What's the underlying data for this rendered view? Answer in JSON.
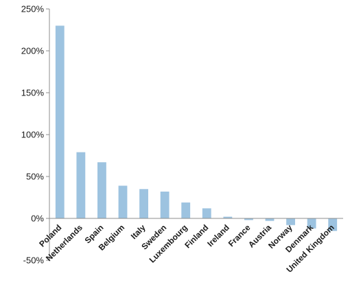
{
  "chart_data": {
    "type": "bar",
    "title": "",
    "xlabel": "",
    "ylabel": "",
    "categories": [
      "Poland",
      "Netherlands",
      "Spain",
      "Belgium",
      "Italy",
      "Sweden",
      "Luxembourg",
      "Finland",
      "Ireland",
      "France",
      "Austria",
      "Norway",
      "Denmark",
      "United Kingdom"
    ],
    "values": [
      230,
      79,
      67,
      39,
      35,
      32,
      19,
      12,
      2,
      -2,
      -3,
      -8,
      -12,
      -15
    ],
    "ylim": [
      -50,
      250
    ],
    "yticks": [
      -50,
      0,
      50,
      100,
      150,
      200,
      250
    ],
    "ytick_labels": [
      "-50%",
      "0%",
      "50%",
      "100%",
      "150%",
      "200%",
      "250%"
    ],
    "bar_color": "#9dc3e0",
    "axis_color": "#8c8c8c",
    "grid": false,
    "legend": "none"
  }
}
